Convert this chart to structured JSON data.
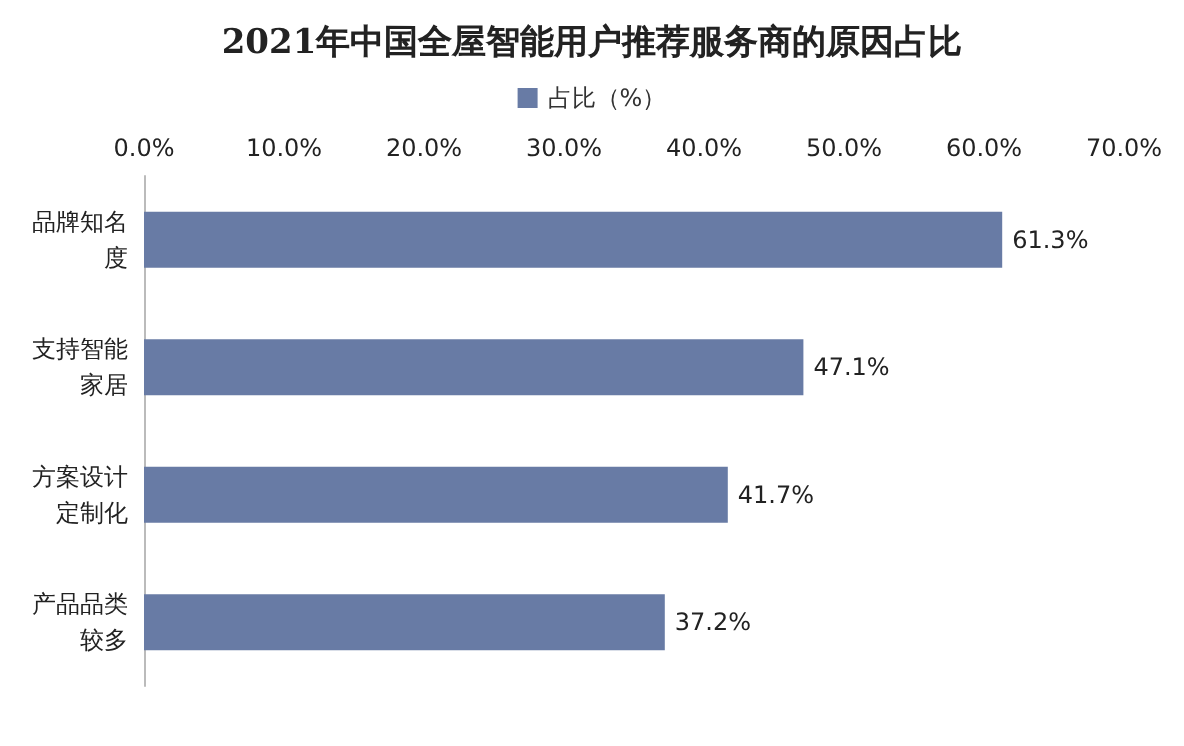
{
  "chart_data": {
    "type": "bar",
    "orientation": "horizontal",
    "title": "2021年中国全屋智能用户推荐服务商的原因占比",
    "categories": [
      "品牌知名度",
      "支持智能家居",
      "方案设计定制化",
      "产品品类较多"
    ],
    "series": [
      {
        "name": "占比（%）",
        "color": "#687ba5",
        "values": [
          61.3,
          47.1,
          41.7,
          37.2
        ],
        "value_labels": [
          "61.3%",
          "47.1%",
          "41.7%",
          "37.2%"
        ]
      }
    ],
    "xlim": [
      0,
      70
    ],
    "xticks": [
      {
        "value": 0,
        "label": "0.0%"
      },
      {
        "value": 10,
        "label": "10.0%"
      },
      {
        "value": 20,
        "label": "20.0%"
      },
      {
        "value": 30,
        "label": "30.0%"
      },
      {
        "value": 40,
        "label": "40.0%"
      },
      {
        "value": 50,
        "label": "50.0%"
      },
      {
        "value": 60,
        "label": "60.0%"
      },
      {
        "value": 70,
        "label": "70.0%"
      }
    ],
    "grid": false,
    "legend": "top"
  }
}
